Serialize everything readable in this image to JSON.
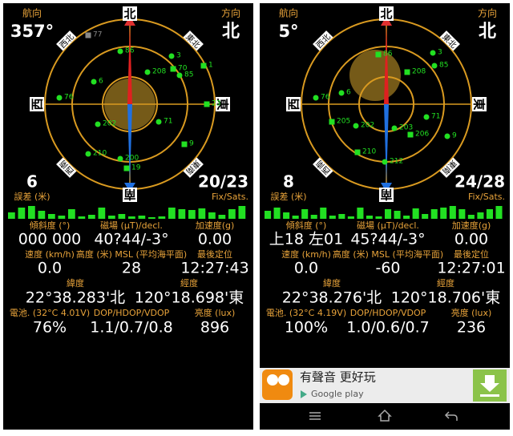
{
  "panels": [
    {
      "heading_label": "航向",
      "heading": "357°",
      "direction_label": "方向",
      "direction": "北",
      "compass": {
        "north": "北",
        "east": "東",
        "south": "南",
        "west": "西",
        "northeast": "東北",
        "northwest": "西北",
        "southwest": "西南",
        "southeast": "東南"
      },
      "satellites": [
        "77",
        "86",
        "3",
        "70",
        "208",
        "85",
        "1",
        "6",
        "76",
        "23",
        "202",
        "71",
        "9",
        "210",
        "200",
        "19"
      ],
      "accuracy": "6",
      "accuracy_label": "誤差 (米)",
      "fix_sats": "20/23",
      "fix_sats_label": "Fix/Sats.",
      "signal": [
        8,
        14,
        16,
        10,
        6,
        4,
        12,
        3,
        5,
        14,
        4,
        6,
        3,
        4,
        2,
        3,
        14,
        12,
        11,
        13,
        8,
        5,
        12,
        16
      ],
      "rows": [
        [
          {
            "label": "傾斜度 (°)",
            "value": "000 000"
          },
          {
            "label": "磁場 (μT)/decl.",
            "value": "40?44/-3°"
          },
          {
            "label": "加速度(g)",
            "value": "0.00"
          }
        ],
        [
          {
            "label": "速度 (km/h)",
            "value": "0.0"
          },
          {
            "label": "高度 (米) MSL (平均海平面)",
            "value": "28"
          },
          {
            "label": "最後定位",
            "value": "12:27:43"
          }
        ],
        [
          {
            "label": "緯度",
            "value": "22°38.283'北"
          },
          {
            "label": "經度",
            "value": "120°18.698'東"
          }
        ],
        [
          {
            "label": "電池. (32°C 4.01V)",
            "value": "76%"
          },
          {
            "label": "DOP/HDOP/VDOP",
            "value": "1.1/0.7/0.8"
          },
          {
            "label": "亮度 (lux)",
            "value": "896"
          }
        ]
      ]
    },
    {
      "heading_label": "航向",
      "heading": "5°",
      "direction_label": "方向",
      "direction": "北",
      "compass": {
        "north": "北",
        "east": "東",
        "south": "南",
        "west": "西",
        "northeast": "東北",
        "northwest": "西北",
        "southwest": "西南",
        "southeast": "東南"
      },
      "satellites": [
        "86",
        "3",
        "85",
        "208",
        "6",
        "76",
        "205",
        "202",
        "203",
        "206",
        "71",
        "9",
        "210",
        "212"
      ],
      "accuracy": "8",
      "accuracy_label": "誤差 (米)",
      "fix_sats": "24/28",
      "fix_sats_label": "Fix/Sats.",
      "signal": [
        10,
        14,
        8,
        4,
        12,
        5,
        14,
        4,
        6,
        3,
        14,
        4,
        3,
        12,
        10,
        4,
        13,
        6,
        12,
        14,
        16,
        12,
        5,
        8,
        12,
        16
      ],
      "rows": [
        [
          {
            "label": "傾斜度 (°)",
            "value": "上18 左01"
          },
          {
            "label": "磁場 (μT)/decl.",
            "value": "45?44/-3°"
          },
          {
            "label": "加速度(g)",
            "value": "0.00"
          }
        ],
        [
          {
            "label": "速度 (km/h)",
            "value": "0.0"
          },
          {
            "label": "高度 (米) MSL (平均海平面)",
            "value": "-60"
          },
          {
            "label": "最後定位",
            "value": "12:27:01"
          }
        ],
        [
          {
            "label": "緯度",
            "value": "22°38.276'北"
          },
          {
            "label": "經度",
            "value": "120°18.706'東"
          }
        ],
        [
          {
            "label": "電池. (32°C 4.19V)",
            "value": "100%"
          },
          {
            "label": "DOP/HDOP/VDOP",
            "value": "1.0/0.6/0.7"
          },
          {
            "label": "亮度 (lux)",
            "value": "236"
          }
        ]
      ]
    }
  ],
  "ad": {
    "title": "有聲音 更好玩",
    "store": "Google play"
  }
}
